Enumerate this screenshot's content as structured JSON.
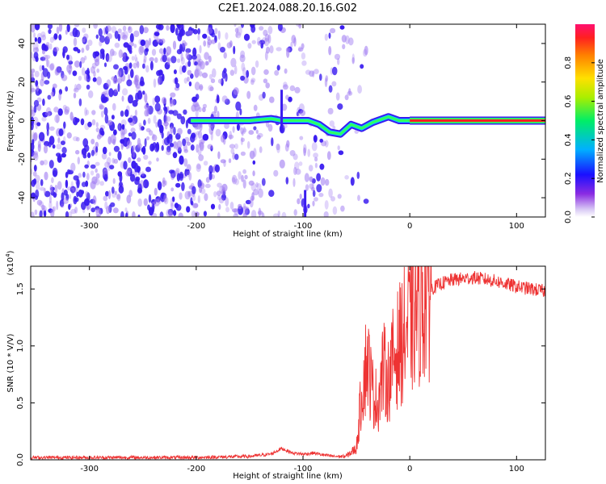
{
  "title": "C2E1.2024.088.20.16.G02",
  "colors": {
    "snr_line": "#ee3333",
    "spectrum_core": "#3a1cf0",
    "spectrum_halo": "#a07cf2"
  },
  "chart_data": [
    {
      "type": "heatmap",
      "xlabel": "Height of straight line (km)",
      "ylabel": "Frequency (Hz)",
      "xlim": [
        -355,
        127
      ],
      "ylim": [
        -50,
        50
      ],
      "xticks": [
        -300,
        -200,
        -100,
        0,
        100
      ],
      "yticks": [
        -40,
        -20,
        0,
        20,
        40
      ],
      "colorbar": {
        "label": "Normalized spectral amplitude",
        "range": [
          0.0,
          1.0
        ],
        "ticks": [
          "0.0",
          "0.2",
          "0.4",
          "0.6",
          "0.8"
        ],
        "colormap": "rainbow"
      },
      "ridge": {
        "description_points": [
          [
            -205,
            0
          ],
          [
            -180,
            0
          ],
          [
            -150,
            0
          ],
          [
            -130,
            1
          ],
          [
            -120,
            0
          ],
          [
            -105,
            0
          ],
          [
            -95,
            0
          ],
          [
            -85,
            -2
          ],
          [
            -75,
            -6
          ],
          [
            -65,
            -7
          ],
          [
            -55,
            -2
          ],
          [
            -45,
            -4
          ],
          [
            -35,
            -1
          ],
          [
            -20,
            2
          ],
          [
            -10,
            0
          ],
          [
            0,
            0
          ],
          [
            50,
            0
          ],
          [
            127,
            0
          ]
        ]
      },
      "grid": false
    },
    {
      "type": "line",
      "xlabel": "Height of straight line (km)",
      "ylabel": "SNR (10 * V/V)",
      "yscale_label": "(x10",
      "yscale_exp": "4",
      "yscale_close": ")",
      "xlim": [
        -355,
        127
      ],
      "ylim": [
        0,
        1.7
      ],
      "xticks": [
        -300,
        -200,
        -100,
        0,
        100
      ],
      "yticks": [
        "0.0",
        "0.5",
        "1.0",
        "1.5"
      ],
      "series": [
        {
          "x": [
            -355,
            -300,
            -250,
            -200,
            -150,
            -130,
            -120,
            -110,
            -100,
            -90,
            -80,
            -70,
            -60,
            -50,
            -45,
            -40,
            -35,
            -30,
            -25,
            -20,
            -15,
            -10,
            -5,
            0,
            5,
            10,
            20,
            30,
            40,
            60,
            80,
            100,
            127
          ],
          "y": [
            0.02,
            0.02,
            0.02,
            0.02,
            0.03,
            0.05,
            0.1,
            0.06,
            0.05,
            0.06,
            0.04,
            0.03,
            0.03,
            0.1,
            0.6,
            0.9,
            0.6,
            0.5,
            0.8,
            0.7,
            0.9,
            1.0,
            1.1,
            1.2,
            1.3,
            1.4,
            1.5,
            1.55,
            1.58,
            1.6,
            1.57,
            1.52,
            1.48
          ]
        }
      ],
      "grid": false
    }
  ]
}
